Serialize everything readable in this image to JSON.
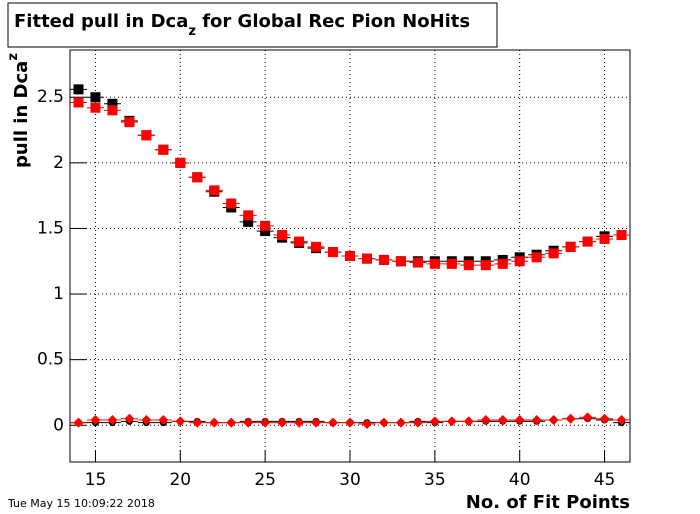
{
  "chart_data": {
    "type": "scatter",
    "title": "Fitted pull in Dca",
    "title_subscript": "z",
    "title_rest": " for Global Rec Pion NoHits",
    "y_label": "pull in Dca",
    "y_label_sub": "z",
    "x_label": "No. of Fit Points",
    "timestamp": "Tue May 15 10:09:22 2018",
    "x": [
      14,
      15,
      16,
      17,
      18,
      19,
      20,
      21,
      22,
      23,
      24,
      25,
      26,
      27,
      28,
      29,
      30,
      31,
      32,
      33,
      34,
      35,
      36,
      37,
      38,
      39,
      40,
      41,
      42,
      43,
      44,
      45,
      46
    ],
    "xlim": [
      13.5,
      46.5
    ],
    "ylim": [
      -0.28,
      2.86
    ],
    "xticks": [
      15,
      20,
      25,
      30,
      35,
      40,
      45
    ],
    "yticks": [
      0,
      0.5,
      1,
      1.5,
      2,
      2.5
    ],
    "grid": true,
    "series": [
      {
        "color": "#000000",
        "marker": "square",
        "values": [
          2.56,
          2.5,
          2.45,
          2.32,
          2.21,
          2.1,
          2.0,
          1.89,
          1.78,
          1.66,
          1.55,
          1.48,
          1.43,
          1.39,
          1.35,
          1.32,
          1.29,
          1.27,
          1.26,
          1.25,
          1.25,
          1.25,
          1.25,
          1.25,
          1.25,
          1.26,
          1.28,
          1.3,
          1.33,
          1.36,
          1.4,
          1.44,
          1.45
        ]
      },
      {
        "color": "#ff0000",
        "marker": "square",
        "values": [
          2.46,
          2.42,
          2.4,
          2.31,
          2.21,
          2.1,
          2.0,
          1.89,
          1.79,
          1.69,
          1.6,
          1.52,
          1.45,
          1.4,
          1.36,
          1.32,
          1.29,
          1.27,
          1.26,
          1.25,
          1.24,
          1.23,
          1.23,
          1.22,
          1.22,
          1.23,
          1.25,
          1.28,
          1.31,
          1.36,
          1.4,
          1.42,
          1.45
        ]
      },
      {
        "color": "#000000",
        "marker": "circle",
        "values": [
          0.02,
          0.02,
          0.02,
          0.03,
          0.02,
          0.02,
          0.03,
          0.03,
          0.02,
          0.02,
          0.03,
          0.03,
          0.03,
          0.03,
          0.03,
          0.02,
          0.02,
          0.02,
          0.02,
          0.02,
          0.03,
          0.02,
          0.03,
          0.03,
          0.03,
          0.03,
          0.03,
          0.03,
          0.04,
          0.05,
          0.05,
          0.04,
          0.02
        ]
      },
      {
        "color": "#ff0000",
        "marker": "diamond",
        "values": [
          0.02,
          0.04,
          0.04,
          0.05,
          0.04,
          0.04,
          0.03,
          0.02,
          0.02,
          0.02,
          0.02,
          0.02,
          0.02,
          0.02,
          0.02,
          0.02,
          0.02,
          0.01,
          0.02,
          0.02,
          0.02,
          0.03,
          0.03,
          0.03,
          0.04,
          0.04,
          0.04,
          0.04,
          0.04,
          0.05,
          0.06,
          0.05,
          0.04
        ]
      }
    ]
  }
}
